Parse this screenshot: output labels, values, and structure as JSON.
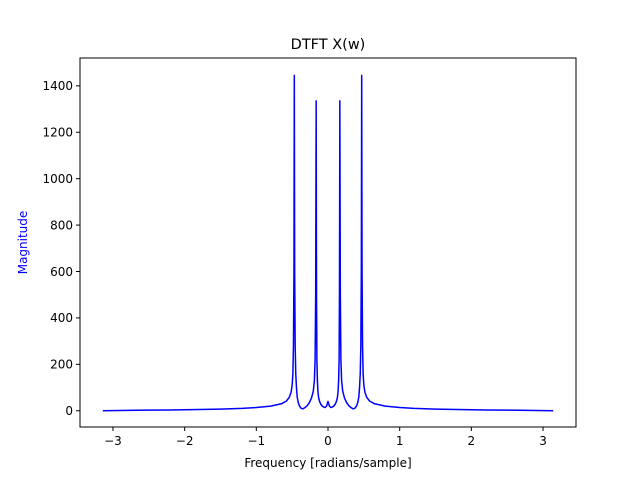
{
  "chart_data": {
    "type": "line",
    "title": "DTFT X(w)",
    "xlabel": "Frequency [radians/sample]",
    "ylabel": "Magnitude",
    "xlim": [
      -3.46,
      3.46
    ],
    "ylim": [
      -70,
      1520
    ],
    "xticks": [
      -3,
      -2,
      -1,
      0,
      1,
      2,
      3
    ],
    "xtick_labels": [
      "−3",
      "−2",
      "−1",
      "0",
      "1",
      "2",
      "3"
    ],
    "yticks": [
      0,
      200,
      400,
      600,
      800,
      1000,
      1200,
      1400
    ],
    "ytick_labels": [
      "0",
      "200",
      "400",
      "600",
      "800",
      "1000",
      "1200",
      "1400"
    ],
    "grid": false,
    "legend": "none",
    "colors": {
      "line": "#0000ff",
      "ylabel": "#0000ff",
      "axes": "#000000"
    },
    "series": [
      {
        "color": "#0000ff",
        "x": [
          -3.1416,
          -2.8,
          -2.5,
          -2.2,
          -2.0,
          -1.8,
          -1.5,
          -1.2,
          -1.0,
          -0.8,
          -0.65,
          -0.58,
          -0.54,
          -0.515,
          -0.5,
          -0.49,
          -0.482,
          -0.475,
          -0.47,
          -0.465,
          -0.458,
          -0.45,
          -0.44,
          -0.43,
          -0.415,
          -0.4,
          -0.38,
          -0.35,
          -0.32,
          -0.29,
          -0.26,
          -0.23,
          -0.205,
          -0.19,
          -0.18,
          -0.172,
          -0.165,
          -0.16,
          -0.155,
          -0.148,
          -0.14,
          -0.13,
          -0.115,
          -0.1,
          -0.08,
          -0.06,
          -0.04,
          -0.02,
          0.0,
          0.02,
          0.04,
          0.06,
          0.08,
          0.1,
          0.115,
          0.13,
          0.14,
          0.148,
          0.155,
          0.16,
          0.165,
          0.172,
          0.18,
          0.19,
          0.205,
          0.23,
          0.26,
          0.29,
          0.32,
          0.35,
          0.38,
          0.4,
          0.415,
          0.43,
          0.44,
          0.45,
          0.458,
          0.465,
          0.47,
          0.475,
          0.482,
          0.49,
          0.5,
          0.515,
          0.54,
          0.58,
          0.65,
          0.8,
          1.0,
          1.2,
          1.5,
          1.8,
          2.0,
          2.2,
          2.5,
          2.8,
          3.1416
        ],
        "y": [
          0,
          1.5,
          2.5,
          3.5,
          4.5,
          5.5,
          7,
          10,
          14,
          20,
          30,
          42,
          58,
          80,
          110,
          160,
          280,
          600,
          1445,
          600,
          280,
          160,
          100,
          60,
          35,
          22,
          12,
          8,
          14,
          22,
          35,
          55,
          85,
          130,
          220,
          500,
          1335,
          500,
          220,
          130,
          80,
          55,
          38,
          28,
          20,
          16,
          14,
          20,
          40,
          20,
          14,
          16,
          20,
          28,
          38,
          55,
          80,
          130,
          220,
          500,
          1335,
          500,
          220,
          130,
          85,
          55,
          35,
          22,
          14,
          8,
          12,
          22,
          35,
          60,
          100,
          160,
          280,
          600,
          1445,
          600,
          280,
          160,
          110,
          80,
          58,
          42,
          30,
          20,
          14,
          10,
          7,
          5.5,
          4.5,
          3.5,
          2.5,
          1.5,
          0
        ]
      }
    ]
  }
}
